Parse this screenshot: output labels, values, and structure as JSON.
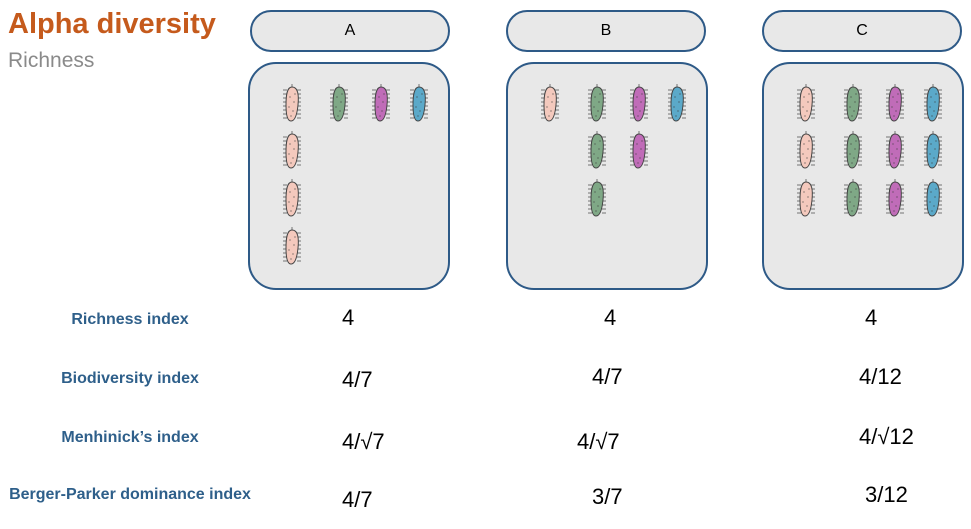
{
  "header": {
    "title": "Alpha diversity",
    "subtitle": "Richness"
  },
  "colors": {
    "title": "#c55a1c",
    "subtitle": "#8a8a8a",
    "label": "#2e5f8a",
    "box_border": "#2e5a87",
    "box_fill": "#e8e8e8",
    "species_pink": "#f4c9bd",
    "species_green": "#7fa886",
    "species_purple": "#c06cb8",
    "species_blue": "#5ba9c9"
  },
  "samples": [
    {
      "name": "A",
      "counts": {
        "pink": 4,
        "green": 1,
        "purple": 1,
        "blue": 1
      }
    },
    {
      "name": "B",
      "counts": {
        "pink": 1,
        "green": 3,
        "purple": 2,
        "blue": 1
      }
    },
    {
      "name": "C",
      "counts": {
        "pink": 3,
        "green": 3,
        "purple": 3,
        "blue": 3
      }
    }
  ],
  "metrics": [
    {
      "label": "Richness index",
      "values": [
        "4",
        "4",
        "4"
      ]
    },
    {
      "label": "Biodiversity index",
      "values": [
        "4/7",
        "4/7",
        "4/12"
      ]
    },
    {
      "label": "Menhinick’s index",
      "values": [
        "4/√7",
        "4/√7",
        "4/√12"
      ]
    },
    {
      "label": "Berger-Parker dominance index",
      "values": [
        "4/7",
        "3/7",
        "3/12"
      ]
    }
  ]
}
